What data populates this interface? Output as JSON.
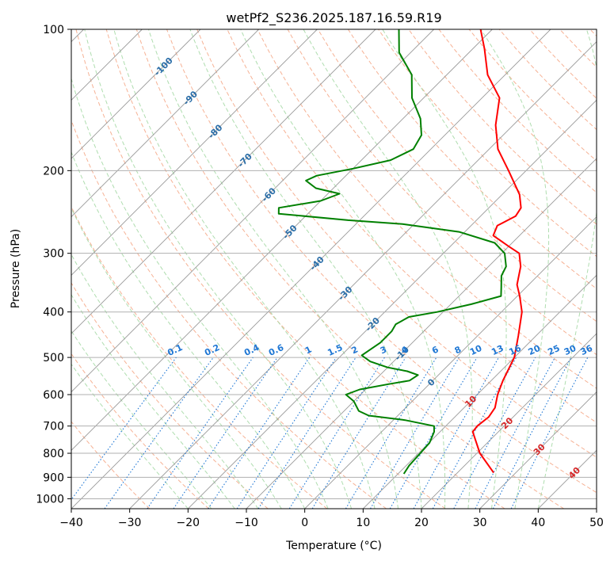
{
  "chart_data": {
    "type": "line",
    "title": "wetPf2_S236.2025.187.16.59.R19",
    "xlabel": "Temperature (°C)",
    "ylabel": "Pressure (hPa)",
    "x_scale": "skew-T",
    "y_scale": "log",
    "xlim": [
      -40,
      50
    ],
    "ylim": [
      1050,
      100
    ],
    "x_ticks": [
      -40,
      -30,
      -20,
      -10,
      0,
      10,
      20,
      30,
      40,
      50
    ],
    "y_ticks": [
      100,
      200,
      300,
      400,
      500,
      600,
      700,
      800,
      900,
      1000
    ],
    "grid": true,
    "colors": {
      "temperature": "#ff0000",
      "dewpoint": "#008000",
      "dry_adiabat": "#f4a582",
      "moist_adiabat": "#a6d9a6",
      "mixing_ratio": "#1f77d4",
      "isotherm": "#999999",
      "grid": "#b0b0b0"
    },
    "series": [
      {
        "key": "temperature",
        "points": [
          {
            "p": 880,
            "t": 26.2
          },
          {
            "p": 800,
            "t": 20.5
          },
          {
            "p": 720,
            "t": 15.6
          },
          {
            "p": 700,
            "t": 15.4
          },
          {
            "p": 670,
            "t": 15.8
          },
          {
            "p": 640,
            "t": 15.3
          },
          {
            "p": 600,
            "t": 13.5
          },
          {
            "p": 560,
            "t": 12.0
          },
          {
            "p": 500,
            "t": 10.0
          },
          {
            "p": 450,
            "t": 7.0
          },
          {
            "p": 400,
            "t": 3.5
          },
          {
            "p": 370,
            "t": 0.4
          },
          {
            "p": 350,
            "t": -2.0
          },
          {
            "p": 320,
            "t": -4.5
          },
          {
            "p": 300,
            "t": -7.0
          },
          {
            "p": 290,
            "t": -10.0
          },
          {
            "p": 275,
            "t": -14.5
          },
          {
            "p": 262,
            "t": -15.5
          },
          {
            "p": 250,
            "t": -14.0
          },
          {
            "p": 240,
            "t": -14.5
          },
          {
            "p": 225,
            "t": -17.0
          },
          {
            "p": 200,
            "t": -23.0
          },
          {
            "p": 180,
            "t": -28.5
          },
          {
            "p": 160,
            "t": -33.0
          },
          {
            "p": 140,
            "t": -37.0
          },
          {
            "p": 125,
            "t": -43.0
          },
          {
            "p": 110,
            "t": -48.0
          },
          {
            "p": 100,
            "t": -52.0
          }
        ]
      },
      {
        "key": "dewpoint",
        "points": [
          {
            "p": 885,
            "t": 11.0
          },
          {
            "p": 850,
            "t": 10.5
          },
          {
            "p": 800,
            "t": 10.3
          },
          {
            "p": 760,
            "t": 10.1
          },
          {
            "p": 720,
            "t": 9.0
          },
          {
            "p": 700,
            "t": 8.0
          },
          {
            "p": 680,
            "t": 2.0
          },
          {
            "p": 665,
            "t": -5.0
          },
          {
            "p": 650,
            "t": -7.5
          },
          {
            "p": 620,
            "t": -10.0
          },
          {
            "p": 600,
            "t": -12.5
          },
          {
            "p": 585,
            "t": -11.0
          },
          {
            "p": 570,
            "t": -7.0
          },
          {
            "p": 560,
            "t": -4.0
          },
          {
            "p": 545,
            "t": -3.5
          },
          {
            "p": 535,
            "t": -6.0
          },
          {
            "p": 525,
            "t": -10.0
          },
          {
            "p": 510,
            "t": -14.0
          },
          {
            "p": 495,
            "t": -16.5
          },
          {
            "p": 480,
            "t": -16.0
          },
          {
            "p": 465,
            "t": -15.5
          },
          {
            "p": 440,
            "t": -15.5
          },
          {
            "p": 425,
            "t": -16.0
          },
          {
            "p": 410,
            "t": -15.0
          },
          {
            "p": 400,
            "t": -11.0
          },
          {
            "p": 385,
            "t": -6.5
          },
          {
            "p": 370,
            "t": -2.8
          },
          {
            "p": 355,
            "t": -4.2
          },
          {
            "p": 335,
            "t": -6.2
          },
          {
            "p": 320,
            "t": -7.0
          },
          {
            "p": 300,
            "t": -9.5
          },
          {
            "p": 285,
            "t": -13.0
          },
          {
            "p": 270,
            "t": -21.0
          },
          {
            "p": 260,
            "t": -32.0
          },
          {
            "p": 255,
            "t": -42.0
          },
          {
            "p": 247,
            "t": -55.0
          },
          {
            "p": 240,
            "t": -56.0
          },
          {
            "p": 232,
            "t": -50.0
          },
          {
            "p": 224,
            "t": -48.0
          },
          {
            "p": 218,
            "t": -53.0
          },
          {
            "p": 210,
            "t": -56.0
          },
          {
            "p": 205,
            "t": -55.0
          },
          {
            "p": 198,
            "t": -50.0
          },
          {
            "p": 190,
            "t": -45.0
          },
          {
            "p": 180,
            "t": -43.0
          },
          {
            "p": 168,
            "t": -44.0
          },
          {
            "p": 155,
            "t": -47.0
          },
          {
            "p": 140,
            "t": -52.0
          },
          {
            "p": 125,
            "t": -56.0
          },
          {
            "p": 112,
            "t": -62.0
          },
          {
            "p": 100,
            "t": -66.0
          }
        ]
      }
    ],
    "isotherm_labels": [
      {
        "text": "-100",
        "t": -100,
        "p": 120
      },
      {
        "text": "-90",
        "t": -90,
        "p": 140
      },
      {
        "text": "-80",
        "t": -80,
        "p": 165
      },
      {
        "text": "-70",
        "t": -70,
        "p": 190
      },
      {
        "text": "-60",
        "t": -60,
        "p": 225
      },
      {
        "text": "-50",
        "t": -50,
        "p": 270
      },
      {
        "text": "-40",
        "t": -40,
        "p": 315
      },
      {
        "text": "-30",
        "t": -30,
        "p": 365
      },
      {
        "text": "-20",
        "t": -20,
        "p": 425
      },
      {
        "text": "-10",
        "t": -10,
        "p": 490
      },
      {
        "text": "0",
        "t": 0,
        "p": 565
      }
    ],
    "mixing_ratio_labels": [
      {
        "text": "0.1",
        "t": -23.0
      },
      {
        "text": "0.2",
        "t": -16.5
      },
      {
        "text": "0.4",
        "t": -9.5
      },
      {
        "text": "0.6",
        "t": -5.0
      },
      {
        "text": "1",
        "t": 0.5
      },
      {
        "text": "1.5",
        "t": 5.0
      },
      {
        "text": "2",
        "t": 8.5
      },
      {
        "text": "3",
        "t": 13.5
      },
      {
        "text": "4",
        "t": 17.0
      },
      {
        "text": "6",
        "t": 22.0
      },
      {
        "text": "8",
        "t": 25.5
      },
      {
        "text": "10",
        "t": 28.5
      },
      {
        "text": "13",
        "t": 32.0
      },
      {
        "text": "16",
        "t": 35.0
      },
      {
        "text": "20",
        "t": 38.0
      },
      {
        "text": "25",
        "t": 41.5
      },
      {
        "text": "30",
        "t": 44.5
      },
      {
        "text": "36",
        "t": 48.0
      }
    ],
    "temperature_markers": [
      {
        "text": "10",
        "t": 10,
        "p": 620
      },
      {
        "text": "20",
        "t": 20,
        "p": 690
      },
      {
        "text": "30",
        "t": 30,
        "p": 785
      },
      {
        "text": "40",
        "t": 40,
        "p": 880
      }
    ]
  }
}
